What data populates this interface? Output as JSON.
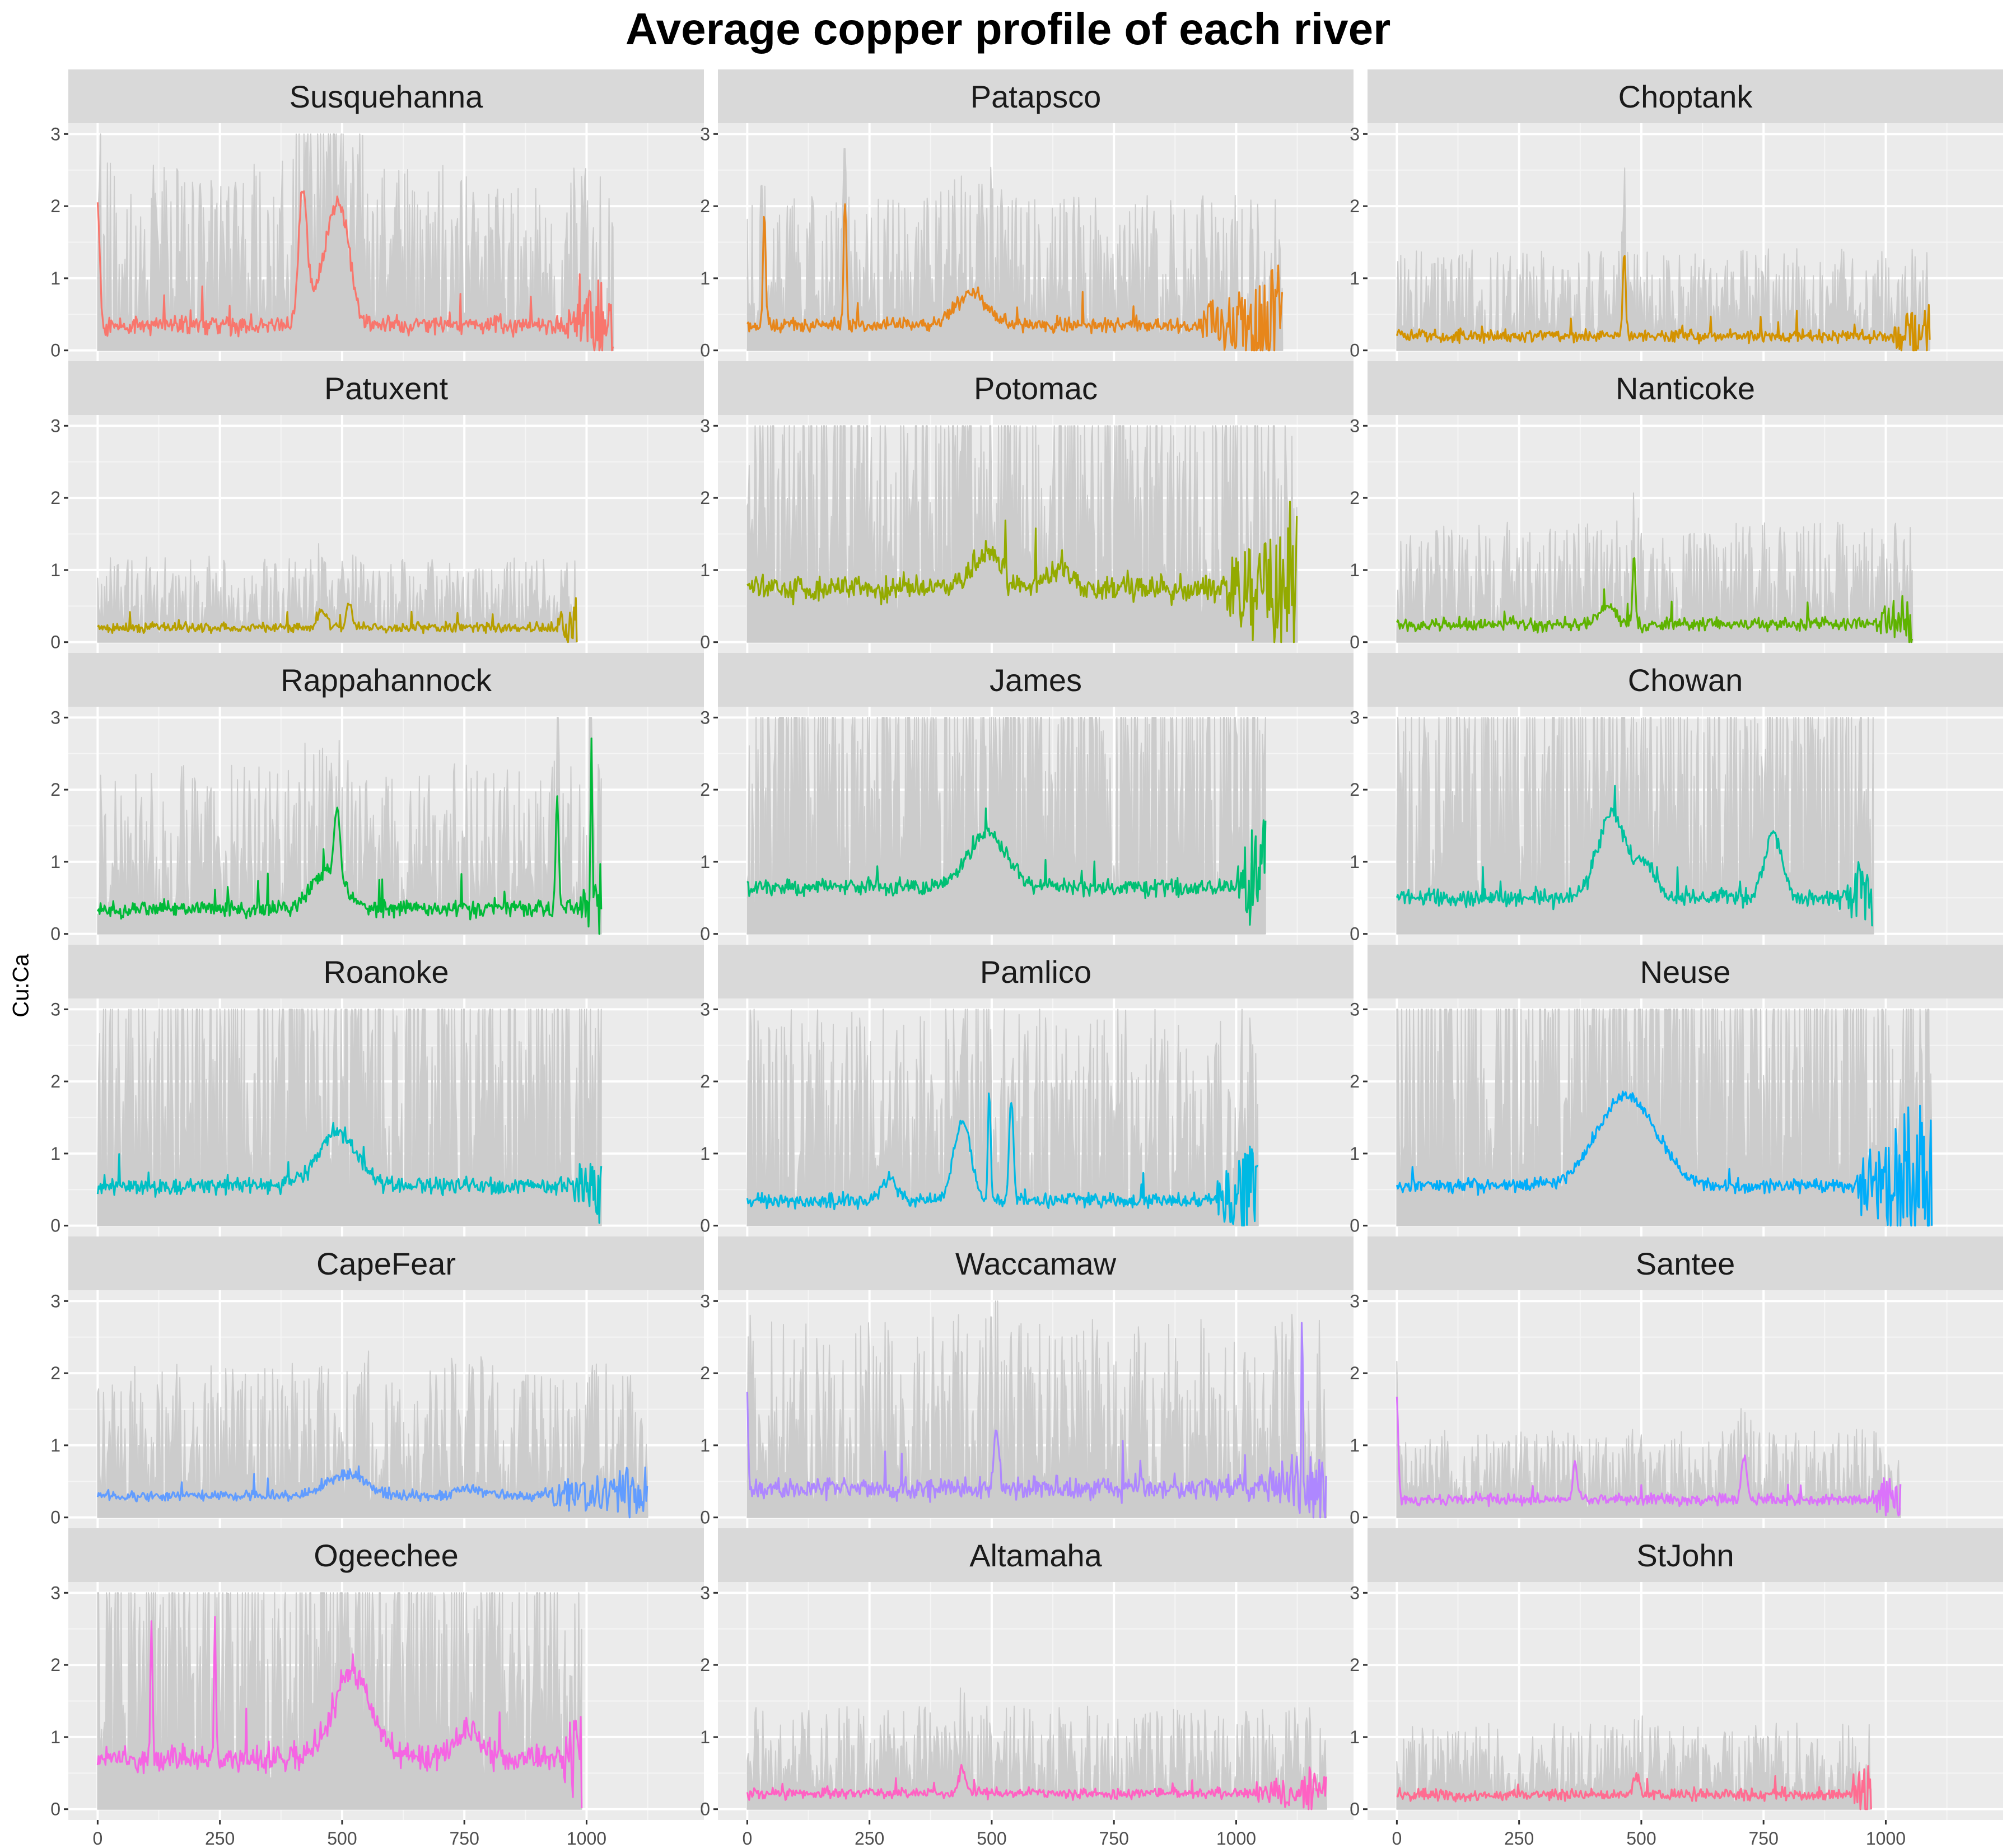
{
  "chart_data": {
    "type": "line",
    "title": "Average copper profile of each river",
    "xlabel": "",
    "ylabel": "Cu:Ca",
    "layout": "facet-grid 6 rows x 3 columns",
    "xlim": [
      -60,
      1240
    ],
    "ylim": [
      -0.15,
      3.15
    ],
    "x_ticks": [
      0,
      250,
      500,
      750,
      1000
    ],
    "x_tick_labels": [
      "0",
      "250",
      "500",
      "750",
      "1000"
    ],
    "y_ticks": [
      0,
      1,
      2,
      3
    ],
    "y_tick_labels": [
      "0",
      "1",
      "2",
      "3"
    ],
    "grid": true,
    "legend": "none",
    "background_series_color": "#cccccc",
    "panel_background": "#ebebeb",
    "strip_background": "#d9d9d9",
    "facets": [
      {
        "name": "Susquehanna",
        "color": "#F8766D",
        "length": 1055,
        "base": 0.35,
        "noise": 0.11,
        "bg_level": 1.1,
        "bg_cap": 3.0,
        "peaks": [
          {
            "x": 0,
            "h": 1.6,
            "w": 6
          },
          {
            "x": 420,
            "h": 1.8,
            "w": 12
          },
          {
            "x": 495,
            "h": 1.3,
            "w": 30
          },
          {
            "x": 470,
            "h": 0.6,
            "w": 40
          }
        ],
        "tail_start": 960,
        "tail_amp": 0.9
      },
      {
        "name": "Patapsco",
        "color": "#E7861B",
        "length": 1095,
        "base": 0.35,
        "noise": 0.09,
        "bg_level": 0.9,
        "bg_cap": 2.8,
        "peaks": [
          {
            "x": 35,
            "h": 1.5,
            "w": 4
          },
          {
            "x": 200,
            "h": 1.8,
            "w": 4
          },
          {
            "x": 460,
            "h": 0.45,
            "w": 45
          }
        ],
        "tail_start": 930,
        "tail_amp": 1.1
      },
      {
        "name": "Choptank",
        "color": "#D39200",
        "length": 1090,
        "base": 0.2,
        "noise": 0.07,
        "bg_level": 0.6,
        "bg_cap": 2.9,
        "peaks": [
          {
            "x": 465,
            "h": 1.2,
            "w": 4
          }
        ],
        "tail_start": 1010,
        "tail_amp": 0.8
      },
      {
        "name": "Patuxent",
        "color": "#B79F00",
        "length": 980,
        "base": 0.2,
        "noise": 0.06,
        "bg_level": 0.5,
        "bg_cap": 2.9,
        "peaks": [
          {
            "x": 460,
            "h": 0.25,
            "w": 12
          },
          {
            "x": 515,
            "h": 0.35,
            "w": 8
          }
        ],
        "tail_start": 940,
        "tail_amp": 0.6
      },
      {
        "name": "Potomac",
        "color": "#93AA00",
        "length": 1125,
        "base": 0.75,
        "noise": 0.16,
        "bg_level": 1.8,
        "bg_cap": 3.0,
        "peaks": [
          {
            "x": 490,
            "h": 0.5,
            "w": 40
          },
          {
            "x": 640,
            "h": 0.3,
            "w": 30
          }
        ],
        "tail_start": 980,
        "tail_amp": 1.6
      },
      {
        "name": "Nanticoke",
        "color": "#5EB300",
        "length": 1055,
        "base": 0.25,
        "noise": 0.08,
        "bg_level": 0.7,
        "bg_cap": 2.9,
        "peaks": [
          {
            "x": 485,
            "h": 1.0,
            "w": 4
          },
          {
            "x": 430,
            "h": 0.25,
            "w": 25
          }
        ],
        "tail_start": 980,
        "tail_amp": 0.6
      },
      {
        "name": "Rappahannock",
        "color": "#00BA38",
        "length": 1030,
        "base": 0.35,
        "noise": 0.1,
        "bg_level": 1.0,
        "bg_cap": 3.0,
        "peaks": [
          {
            "x": 490,
            "h": 1.0,
            "w": 8
          },
          {
            "x": 470,
            "h": 0.5,
            "w": 45
          },
          {
            "x": 940,
            "h": 1.6,
            "w": 4
          },
          {
            "x": 1010,
            "h": 2.2,
            "w": 3
          }
        ],
        "tail_start": 985,
        "tail_amp": 0.8
      },
      {
        "name": "James",
        "color": "#00BF74",
        "length": 1060,
        "base": 0.65,
        "noise": 0.1,
        "bg_level": 2.2,
        "bg_cap": 3.0,
        "peaks": [
          {
            "x": 490,
            "h": 0.75,
            "w": 55
          }
        ],
        "tail_start": 1000,
        "tail_amp": 1.4
      },
      {
        "name": "Chowan",
        "color": "#00C19F",
        "length": 975,
        "base": 0.5,
        "noise": 0.1,
        "bg_level": 1.9,
        "bg_cap": 3.0,
        "peaks": [
          {
            "x": 440,
            "h": 1.2,
            "w": 40
          },
          {
            "x": 510,
            "h": 0.5,
            "w": 25
          },
          {
            "x": 770,
            "h": 0.9,
            "w": 25
          }
        ],
        "tail_start": 920,
        "tail_amp": 1.0
      },
      {
        "name": "Roanoke",
        "color": "#00BFC4",
        "length": 1030,
        "base": 0.55,
        "noise": 0.1,
        "bg_level": 2.0,
        "bg_cap": 3.0,
        "peaks": [
          {
            "x": 490,
            "h": 0.75,
            "w": 55
          }
        ],
        "tail_start": 970,
        "tail_amp": 0.8
      },
      {
        "name": "Pamlico",
        "color": "#00B9E3",
        "length": 1045,
        "base": 0.35,
        "noise": 0.08,
        "bg_level": 1.3,
        "bg_cap": 3.0,
        "peaks": [
          {
            "x": 440,
            "h": 1.1,
            "w": 25
          },
          {
            "x": 495,
            "h": 1.5,
            "w": 4
          },
          {
            "x": 540,
            "h": 1.4,
            "w": 6
          },
          {
            "x": 290,
            "h": 0.3,
            "w": 20
          }
        ],
        "tail_start": 960,
        "tail_amp": 1.2
      },
      {
        "name": "Neuse",
        "color": "#00ADFA",
        "length": 1095,
        "base": 0.55,
        "noise": 0.08,
        "bg_level": 2.3,
        "bg_cap": 3.0,
        "peaks": [
          {
            "x": 470,
            "h": 1.25,
            "w": 85
          }
        ],
        "tail_start": 940,
        "tail_amp": 1.8
      },
      {
        "name": "CapeFear",
        "color": "#619CFF",
        "length": 1125,
        "base": 0.3,
        "noise": 0.06,
        "bg_level": 0.9,
        "bg_cap": 3.0,
        "peaks": [
          {
            "x": 510,
            "h": 0.3,
            "w": 55
          },
          {
            "x": 760,
            "h": 0.1,
            "w": 40
          }
        ],
        "tail_start": 920,
        "tail_amp": 0.6
      },
      {
        "name": "Waccamaw",
        "color": "#AE87FF",
        "length": 1185,
        "base": 0.4,
        "noise": 0.13,
        "bg_level": 1.2,
        "bg_cap": 3.0,
        "peaks": [
          {
            "x": 510,
            "h": 0.7,
            "w": 8
          },
          {
            "x": 1135,
            "h": 2.3,
            "w": 2
          },
          {
            "x": 0,
            "h": 1.4,
            "w": 3
          }
        ],
        "tail_start": 1050,
        "tail_amp": 0.8
      },
      {
        "name": "Santee",
        "color": "#DB72FB",
        "length": 1030,
        "base": 0.25,
        "noise": 0.07,
        "bg_level": 0.5,
        "bg_cap": 3.0,
        "peaks": [
          {
            "x": 0,
            "h": 1.4,
            "w": 4
          },
          {
            "x": 365,
            "h": 0.5,
            "w": 6
          },
          {
            "x": 710,
            "h": 0.6,
            "w": 8
          }
        ],
        "tail_start": 970,
        "tail_amp": 0.6
      },
      {
        "name": "Ogeechee",
        "color": "#F564E3",
        "length": 990,
        "base": 0.7,
        "noise": 0.16,
        "bg_level": 1.8,
        "bg_cap": 3.0,
        "peaks": [
          {
            "x": 110,
            "h": 1.8,
            "w": 3
          },
          {
            "x": 240,
            "h": 1.8,
            "w": 3
          },
          {
            "x": 520,
            "h": 1.2,
            "w": 55
          },
          {
            "x": 760,
            "h": 0.4,
            "w": 40
          }
        ],
        "tail_start": 950,
        "tail_amp": 1.2
      },
      {
        "name": "Altamaha",
        "color": "#FF61C3",
        "length": 1185,
        "base": 0.22,
        "noise": 0.06,
        "bg_level": 0.6,
        "bg_cap": 2.9,
        "peaks": [
          {
            "x": 440,
            "h": 0.35,
            "w": 10
          }
        ],
        "tail_start": 1040,
        "tail_amp": 0.5
      },
      {
        "name": "StJohn",
        "color": "#FF6C91",
        "length": 970,
        "base": 0.2,
        "noise": 0.07,
        "bg_level": 0.5,
        "bg_cap": 2.6,
        "peaks": [
          {
            "x": 490,
            "h": 0.3,
            "w": 8
          }
        ],
        "tail_start": 930,
        "tail_amp": 0.8
      }
    ]
  }
}
